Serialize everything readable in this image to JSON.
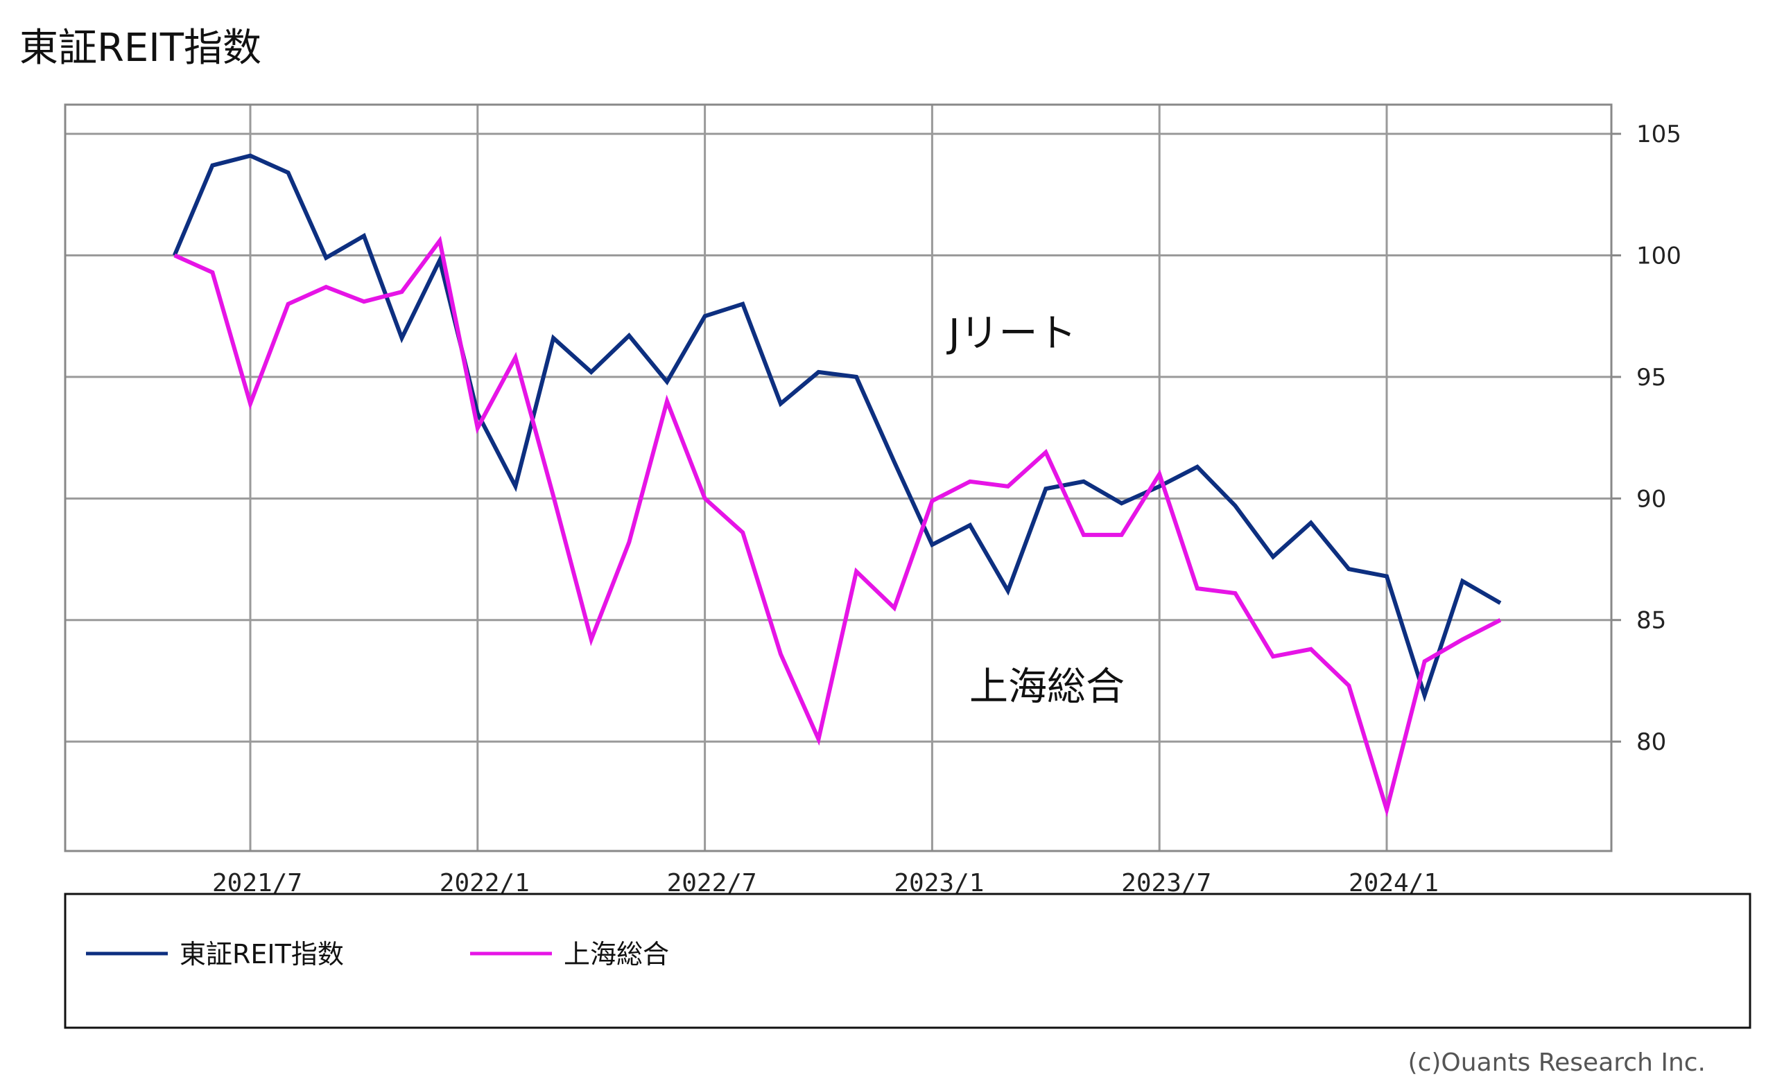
{
  "chart_data": {
    "type": "line",
    "title": "東証REIT指数",
    "x_tick_labels": [
      "2021/7",
      "2022/1",
      "2022/7",
      "2023/1",
      "2023/7",
      "2024/1"
    ],
    "ylim": [
      75.5,
      106.2
    ],
    "y_ticks": [
      80,
      85,
      90,
      95,
      100,
      105
    ],
    "grid": true,
    "y_axis_side": "right",
    "legend_position": "bottom",
    "series": [
      {
        "name": "東証REIT指数",
        "color": "#0d2f80",
        "x": [
          "2021/5",
          "2021/6",
          "2021/7",
          "2021/8",
          "2021/9",
          "2021/10",
          "2021/11",
          "2021/12",
          "2022/1",
          "2022/2",
          "2022/3",
          "2022/4",
          "2022/5",
          "2022/6",
          "2022/7",
          "2022/8",
          "2022/9",
          "2022/10",
          "2022/11",
          "2022/12",
          "2023/1",
          "2023/2",
          "2023/3",
          "2023/4",
          "2023/5",
          "2023/6",
          "2023/7",
          "2023/8",
          "2023/9",
          "2023/10",
          "2023/11",
          "2023/12",
          "2024/1",
          "2024/2",
          "2024/3",
          "2024/4"
        ],
        "values": [
          100.0,
          103.7,
          104.1,
          103.4,
          99.9,
          100.8,
          96.6,
          99.8,
          93.5,
          90.5,
          96.6,
          95.2,
          96.7,
          94.8,
          97.5,
          98.0,
          93.9,
          95.2,
          95.0,
          91.5,
          88.1,
          88.9,
          86.2,
          90.4,
          90.7,
          89.8,
          90.5,
          91.3,
          89.7,
          87.6,
          89.0,
          87.1,
          86.8,
          81.9,
          86.6,
          85.7
        ]
      },
      {
        "name": "上海総合",
        "color": "#e614e6",
        "x": [
          "2021/5",
          "2021/6",
          "2021/7",
          "2021/8",
          "2021/9",
          "2021/10",
          "2021/11",
          "2021/12",
          "2022/1",
          "2022/2",
          "2022/3",
          "2022/4",
          "2022/5",
          "2022/6",
          "2022/7",
          "2022/8",
          "2022/9",
          "2022/10",
          "2022/11",
          "2022/12",
          "2023/1",
          "2023/2",
          "2023/3",
          "2023/4",
          "2023/5",
          "2023/6",
          "2023/7",
          "2023/8",
          "2023/9",
          "2023/10",
          "2023/11",
          "2023/12",
          "2024/1",
          "2024/2",
          "2024/3",
          "2024/4"
        ],
        "values": [
          100.0,
          99.3,
          93.9,
          98.0,
          98.7,
          98.1,
          98.5,
          100.6,
          92.9,
          95.8,
          90.1,
          84.2,
          88.2,
          94.0,
          90.0,
          88.6,
          83.6,
          80.1,
          87.0,
          85.5,
          89.9,
          90.7,
          90.5,
          91.9,
          88.5,
          88.5,
          91.0,
          86.3,
          86.1,
          83.5,
          83.8,
          82.3,
          77.2,
          83.3,
          84.2,
          85.0
        ]
      }
    ],
    "annotations": [
      "Jリート",
      "上海総合"
    ]
  },
  "credit": "(c)Ouants Research Inc."
}
